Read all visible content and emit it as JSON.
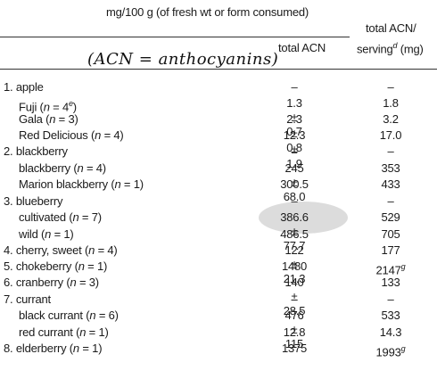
{
  "header": {
    "col1_title": "mg/100 g (of fresh wt or form consumed)",
    "col1_sub": "total ACN",
    "col2_line1": "total ACN/",
    "col2_line2_a": "serving",
    "col2_line2_sup": "d",
    "col2_line2_b": " (mg)"
  },
  "annotation": {
    "text": "(ACN = anthocyanins)"
  },
  "rows": [
    {
      "label": "1. apple",
      "v1": "–",
      "v2": "–"
    },
    {
      "label": "Fuji (n = 4",
      "label_sup": "e",
      "label_end": ")",
      "v1": "1.3 ± 0.7",
      "v2": "1.8"
    },
    {
      "label": "Gala (n = 3)",
      "v1": "2.3 ± 0.8",
      "v2": "3.2"
    },
    {
      "label": "Red Delicious (n = 4)",
      "v1": "12.3 ± 1.9",
      "v2": "17.0"
    },
    {
      "label": "2. blackberry",
      "v1": "–",
      "v2": "–"
    },
    {
      "label": "blackberry (n = 4)",
      "v1": "245 ± 68.0",
      "v2": "353"
    },
    {
      "label": "Marion blackberry (n = 1)",
      "v1": "300.5",
      "v2": "433"
    },
    {
      "label": "3. blueberry",
      "v1": "–",
      "v2": "–"
    },
    {
      "label": "cultivated (n = 7)",
      "v1": "386.6 ± 77.7",
      "v2": "529"
    },
    {
      "label": "wild (n = 1)",
      "v1": "486.5",
      "v2": "705"
    },
    {
      "label": "4. cherry, sweet (n = 4)",
      "v1": "122 ± 21.3",
      "v2": "177"
    },
    {
      "label": "5. chokeberry (n = 1)",
      "v1": "1480",
      "v2": "2147",
      "v2_sup": "g"
    },
    {
      "label": "6. cranberry (n = 3)",
      "v1": "140 ± 28.5",
      "v2": "133"
    },
    {
      "label": "7. currant",
      "v1": "–",
      "v2": "–"
    },
    {
      "label": "black currant (n = 6)",
      "v1": "476 ± 115",
      "v2": "533"
    },
    {
      "label": "red currant (n = 1)",
      "v1": "12.8",
      "v2": "14.3"
    },
    {
      "label": "8. elderberry (n = 1)",
      "v1": "1375",
      "v2": "1993",
      "v2_sup": "g"
    }
  ]
}
